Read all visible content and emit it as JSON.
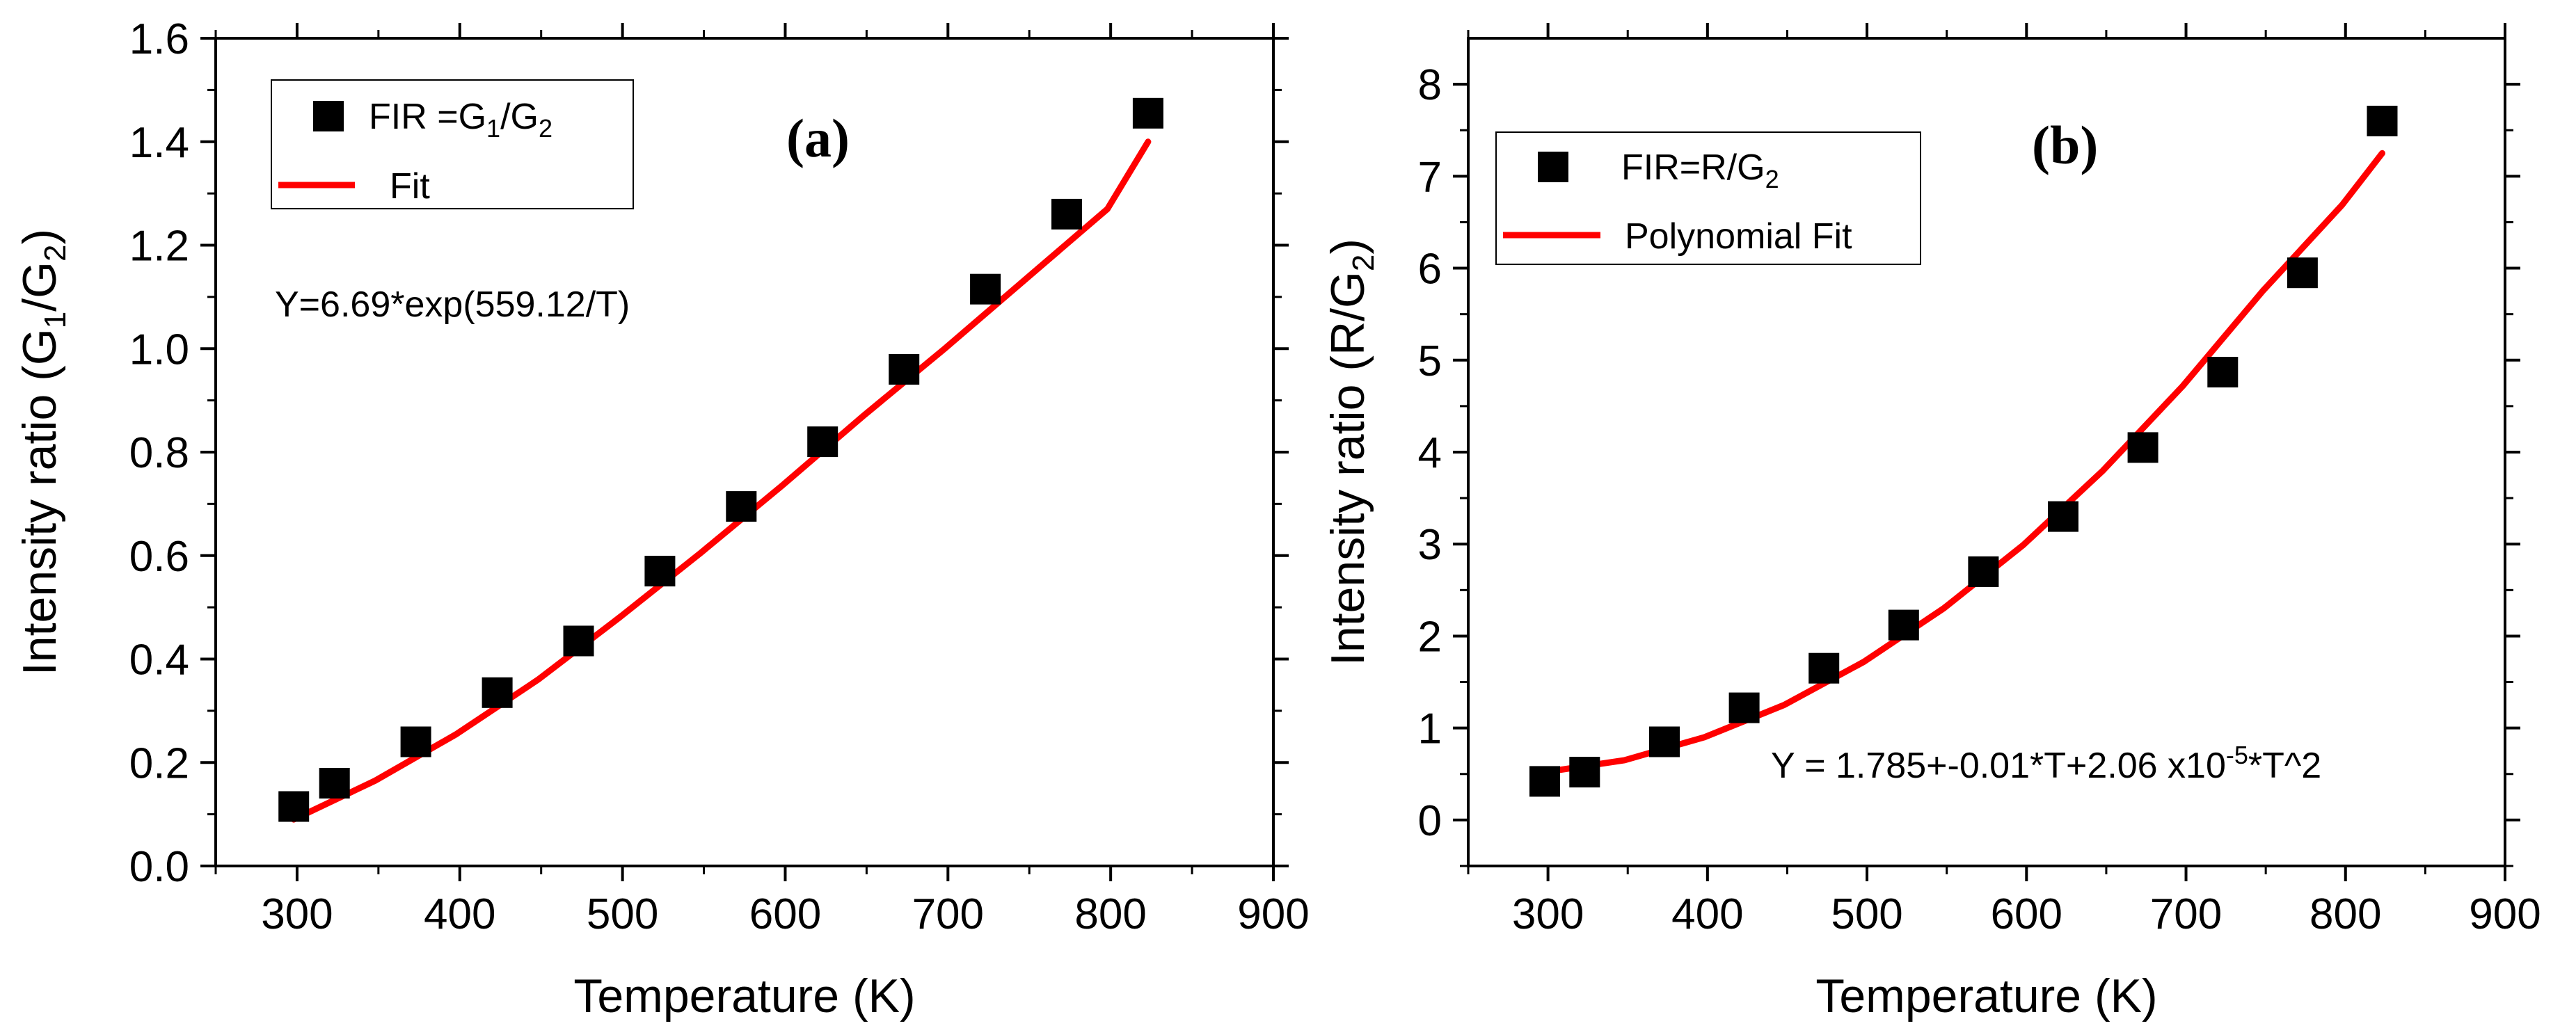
{
  "colors": {
    "marker": "#000000",
    "fit": "#ff0000"
  },
  "chart_data": [
    {
      "type": "scatter",
      "panel_label": "(a)",
      "xlabel": "Temperature (K)",
      "ylabel": "Intensity ratio (G1/G2)",
      "ylabel_parts": {
        "pre": "Intensity ratio (G",
        "sub1": "1",
        "mid": "/G",
        "sub2": "2",
        "post": ")"
      },
      "xlim": [
        250,
        900
      ],
      "ylim": [
        0,
        1.6
      ],
      "xticks": [
        300,
        400,
        500,
        600,
        700,
        800,
        900
      ],
      "xtick_labels": [
        "300",
        "400",
        "500",
        "600",
        "700",
        "800",
        "900"
      ],
      "yticks": [
        0,
        0.2,
        0.4,
        0.6,
        0.8,
        1.0,
        1.2,
        1.4,
        1.6
      ],
      "ytick_labels": [
        "0.0",
        "0.2",
        "0.4",
        "0.6",
        "0.8",
        "1.0",
        "1.2",
        "1.4",
        "1.6"
      ],
      "series": [
        {
          "name": "FIR =G1/G2",
          "legend_parts": {
            "pre": "FIR =G",
            "sub1": "1",
            "mid": "/G",
            "sub2": "2"
          },
          "kind": "scatter",
          "marker": "square",
          "x": [
            298,
            323,
            373,
            423,
            473,
            523,
            573,
            623,
            673,
            723,
            773,
            823
          ],
          "y": [
            0.115,
            0.16,
            0.24,
            0.335,
            0.435,
            0.57,
            0.695,
            0.82,
            0.96,
            1.115,
            1.26,
            1.455
          ]
        },
        {
          "name": "Fit",
          "kind": "line",
          "x": [
            298,
            348,
            398,
            448,
            498,
            548,
            598,
            648,
            698,
            748,
            798,
            823
          ],
          "y": [
            0.09,
            0.165,
            0.255,
            0.36,
            0.48,
            0.605,
            0.735,
            0.87,
            1.0,
            1.135,
            1.27,
            1.4
          ]
        }
      ],
      "legend_position": "top-left",
      "equation": "Y=6.69*exp(559.12/T)"
    },
    {
      "type": "scatter",
      "panel_label": "(b)",
      "xlabel": "Temperature (K)",
      "ylabel": "Intensity ratio (R/G2)",
      "ylabel_parts": {
        "pre": "Intensity ratio (R/G",
        "sub": "2",
        "post": ")"
      },
      "xlim": [
        250,
        900
      ],
      "ylim": [
        -0.5,
        8.5
      ],
      "xticks": [
        300,
        400,
        500,
        600,
        700,
        800,
        900
      ],
      "xtick_labels": [
        "300",
        "400",
        "500",
        "600",
        "700",
        "800",
        "900"
      ],
      "yticks": [
        0,
        1,
        2,
        3,
        4,
        5,
        6,
        7,
        8
      ],
      "ytick_labels": [
        "0",
        "1",
        "2",
        "3",
        "4",
        "5",
        "6",
        "7",
        "8"
      ],
      "series": [
        {
          "name": "FIR=R/G2",
          "legend_parts": {
            "pre": "FIR=R/G",
            "sub": "2"
          },
          "kind": "scatter",
          "marker": "square",
          "x": [
            298,
            323,
            373,
            423,
            473,
            523,
            573,
            623,
            673,
            723,
            773,
            823
          ],
          "y": [
            0.42,
            0.52,
            0.85,
            1.22,
            1.65,
            2.12,
            2.7,
            3.3,
            4.05,
            4.87,
            5.95,
            7.6
          ]
        },
        {
          "name": "Polynomial Fit",
          "kind": "line",
          "x": [
            298,
            348,
            398,
            448,
            498,
            548,
            598,
            648,
            698,
            748,
            798,
            823
          ],
          "y": [
            0.52,
            0.65,
            0.9,
            1.25,
            1.72,
            2.3,
            2.99,
            3.8,
            4.72,
            5.75,
            6.69,
            7.25
          ]
        }
      ],
      "legend_position": "top-left",
      "equation_parts": {
        "pre": "Y = 1.785+-0.01*T+2.06 x10",
        "sup": "-5",
        "post": "*T^2"
      }
    }
  ]
}
